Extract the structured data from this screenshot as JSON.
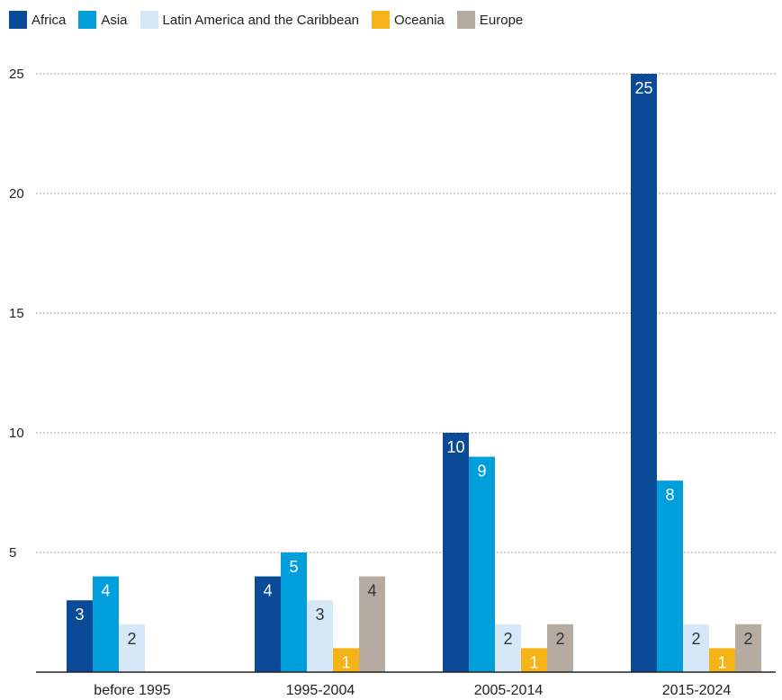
{
  "chart_data": {
    "type": "bar",
    "categories": [
      "before 1995",
      "1995-2004",
      "2005-2014",
      "2015-2024"
    ],
    "series": [
      {
        "name": "Africa",
        "color": "#0a4a96",
        "values": [
          3,
          4,
          10,
          25
        ]
      },
      {
        "name": "Asia",
        "color": "#009fdc",
        "values": [
          4,
          5,
          9,
          8
        ]
      },
      {
        "name": "Latin America and the Caribbean",
        "color": "#d6e8f7",
        "values": [
          2,
          3,
          2,
          2
        ]
      },
      {
        "name": "Oceania",
        "color": "#f6b318",
        "values": [
          null,
          1,
          1,
          1
        ]
      },
      {
        "name": "Europe",
        "color": "#b5aba0",
        "values": [
          null,
          4,
          2,
          2
        ]
      }
    ],
    "yticks": [
      5,
      10,
      15,
      20,
      25
    ],
    "ylim": [
      0,
      25
    ],
    "grid": true,
    "legend_position": "top-left",
    "title": "",
    "xlabel": "",
    "ylabel": ""
  }
}
